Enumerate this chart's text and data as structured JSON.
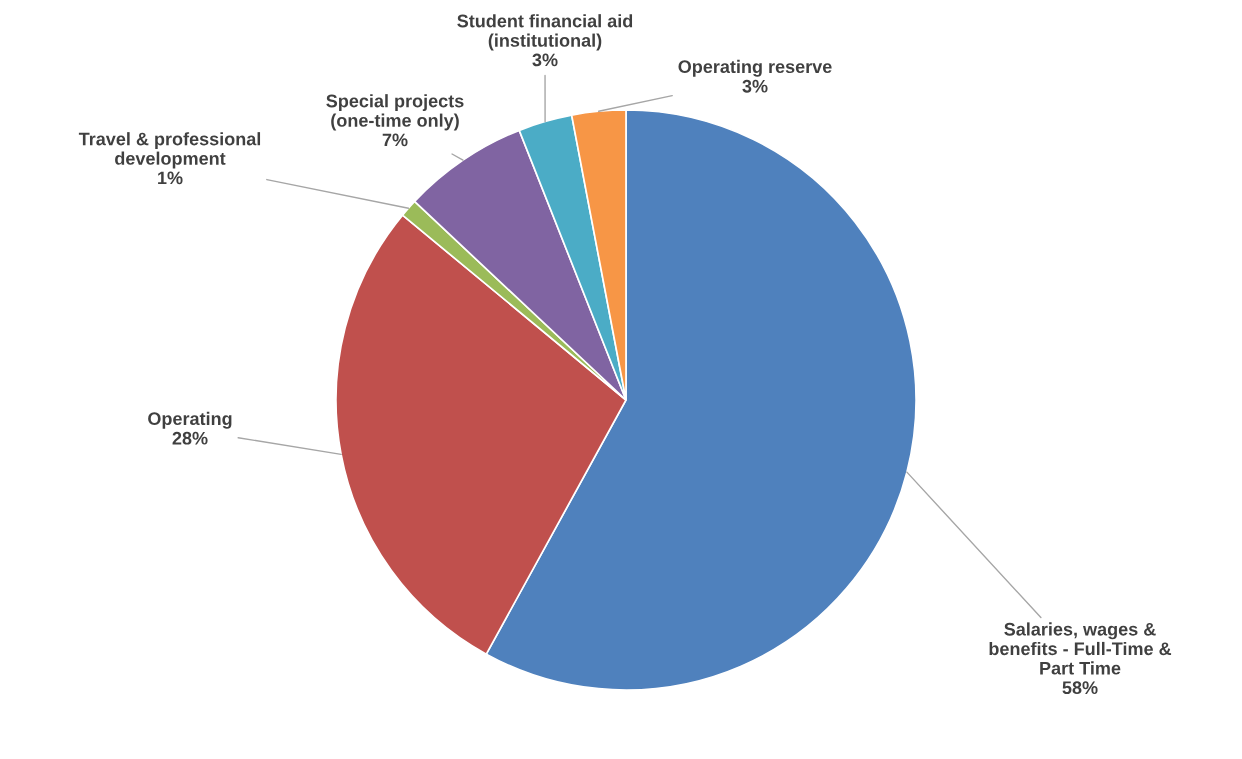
{
  "chart_data": {
    "type": "pie",
    "categories": [
      "Salaries, wages &\nbenefits - Full-Time &\nPart Time",
      "Operating",
      "Travel & professional\ndevelopment",
      "Special projects\n(one-time only)",
      "Student financial aid\n(institutional)",
      "Operating reserve"
    ],
    "values": [
      58,
      28,
      1,
      7,
      3,
      3
    ],
    "value_labels": [
      "58%",
      "28%",
      "1%",
      "7%",
      "3%",
      "3%"
    ],
    "colors": [
      "#4f81bd",
      "#c0504d",
      "#9bbb59",
      "#8064a2",
      "#4bacc6",
      "#f79646"
    ],
    "legend": false
  }
}
